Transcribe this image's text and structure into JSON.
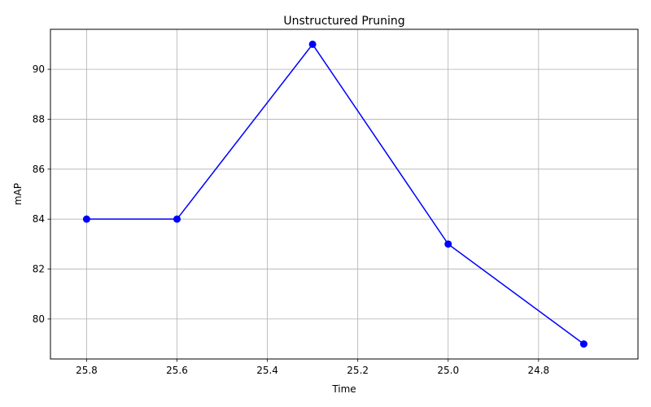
{
  "chart_data": {
    "type": "line",
    "title": "Unstructured Pruning",
    "xlabel": "Time",
    "ylabel": "mAP",
    "x_inverted": true,
    "xlim": [
      25.88,
      24.58
    ],
    "ylim": [
      78.4,
      91.6
    ],
    "x_ticks": [
      25.8,
      25.6,
      25.4,
      25.2,
      25.0,
      24.8
    ],
    "x_tick_labels": [
      "25.8",
      "25.6",
      "25.4",
      "25.2",
      "25.0",
      "24.8"
    ],
    "y_ticks": [
      80,
      82,
      84,
      86,
      88,
      90
    ],
    "y_tick_labels": [
      "80",
      "82",
      "84",
      "86",
      "88",
      "90"
    ],
    "grid": true,
    "series": [
      {
        "x": [
          25.8,
          25.6,
          25.3,
          25.0,
          24.7
        ],
        "y": [
          84,
          84,
          91,
          83,
          79
        ],
        "color": "#0000ff",
        "marker": "circle"
      }
    ]
  }
}
